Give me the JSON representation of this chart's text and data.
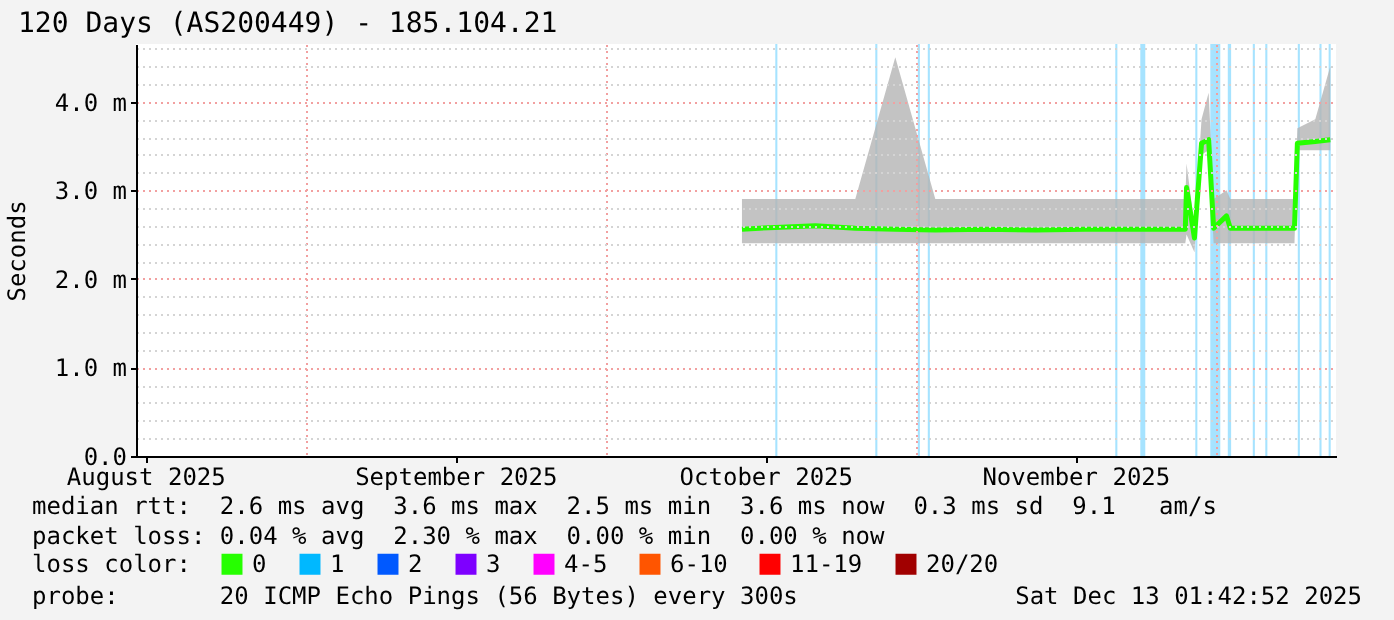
{
  "chart_data": {
    "type": "line",
    "title": "120 Days (AS200449) - 185.104.21",
    "ylabel": "Seconds",
    "legend_title": "loss color:",
    "annotations": [
      "median rtt:  2.6 ms avg  3.6 ms max  2.5 ms min  3.6 ms now  0.3 ms sd  9.1   am/s",
      "packet loss: 0.04 % avg  2.30 % max  0.00 % min  0.00 % now",
      "probe:       20 ICMP Echo Pings (56 Bytes) every 300s",
      "Sat Dec 13 01:42:52 2025"
    ],
    "xlim": [
      "2025-08-15T01:42",
      "2025-12-13T01:42"
    ],
    "xticks": [
      {
        "value": "2025-08-16T00:00",
        "label": "August 2025"
      },
      {
        "value": "2025-09-01T00:00",
        "label": null
      },
      {
        "value": "2025-09-16T00:00",
        "label": "September 2025"
      },
      {
        "value": "2025-10-01T00:00",
        "label": null
      },
      {
        "value": "2025-10-17T00:00",
        "label": "October 2025"
      },
      {
        "value": "2025-11-01T00:00",
        "label": null
      },
      {
        "value": "2025-11-17T00:00",
        "label": "November 2025"
      },
      {
        "value": "2025-12-01T00:00",
        "label": null
      }
    ],
    "ylim": [
      0,
      4.65
    ],
    "yticks": [
      {
        "value": 0,
        "label": "0.0"
      },
      {
        "value": 0.2,
        "label": null
      },
      {
        "value": 0.4,
        "label": null
      },
      {
        "value": 0.6,
        "label": null
      },
      {
        "value": 0.8,
        "label": null
      },
      {
        "value": 1,
        "label": "1.0 m"
      },
      {
        "value": 1.2,
        "label": null
      },
      {
        "value": 1.4,
        "label": null
      },
      {
        "value": 1.6,
        "label": null
      },
      {
        "value": 1.8,
        "label": null
      },
      {
        "value": 2,
        "label": "2.0 m"
      },
      {
        "value": 2.2,
        "label": null
      },
      {
        "value": 2.4,
        "label": null
      },
      {
        "value": 2.6,
        "label": null
      },
      {
        "value": 2.8,
        "label": null
      },
      {
        "value": 3,
        "label": "3.0 m"
      },
      {
        "value": 3.2,
        "label": null
      },
      {
        "value": 3.4,
        "label": null
      },
      {
        "value": 3.6,
        "label": null
      },
      {
        "value": 3.8,
        "label": null
      },
      {
        "value": 4,
        "label": "4.0 m"
      },
      {
        "value": 4.2,
        "label": null
      },
      {
        "value": 4.4,
        "label": null
      },
      {
        "value": 4.6,
        "label": null
      }
    ],
    "grid": true,
    "legend": "bottom",
    "bands": [
      {
        "axis": "x",
        "from": "2025-10-18T00:00",
        "to": "2025-10-18T05:00",
        "color": "#a6e3ff"
      },
      {
        "axis": "x",
        "from": "2025-10-28T00:00",
        "to": "2025-10-28T05:00",
        "color": "#a6e3ff"
      },
      {
        "axis": "x",
        "from": "2025-11-01T06:00",
        "to": "2025-11-01T11:00",
        "color": "#a6e3ff"
      },
      {
        "axis": "x",
        "from": "2025-11-02T06:00",
        "to": "2025-11-02T11:00",
        "color": "#a6e3ff"
      },
      {
        "axis": "x",
        "from": "2025-11-21T00:00",
        "to": "2025-11-21T05:00",
        "color": "#a6e3ff"
      },
      {
        "axis": "x",
        "from": "2025-11-23T12:00",
        "to": "2025-11-24T00:00",
        "color": "#a6e3ff"
      },
      {
        "axis": "x",
        "from": "2025-11-29T00:00",
        "to": "2025-11-29T05:00",
        "color": "#a6e3ff"
      },
      {
        "axis": "x",
        "from": "2025-11-30T12:00",
        "to": "2025-12-01T12:00",
        "color": "#a6e3ff"
      },
      {
        "axis": "x",
        "from": "2025-12-02T06:00",
        "to": "2025-12-02T14:00",
        "color": "#a6e3ff"
      },
      {
        "axis": "x",
        "from": "2025-12-04T18:00",
        "to": "2025-12-04T23:00",
        "color": "#a6e3ff"
      },
      {
        "axis": "x",
        "from": "2025-12-06T00:00",
        "to": "2025-12-06T05:00",
        "color": "#a6e3ff"
      },
      {
        "axis": "x",
        "from": "2025-12-09T06:00",
        "to": "2025-12-09T11:00",
        "color": "#a6e3ff"
      },
      {
        "axis": "x",
        "from": "2025-12-11T10:00",
        "to": "2025-12-11T15:00",
        "color": "#a6e3ff"
      },
      {
        "axis": "x",
        "from": "2025-12-12T08:00",
        "to": "2025-12-12T13:00",
        "color": "#a6e3ff"
      }
    ],
    "series": [
      {
        "name": "0",
        "color": "#26ff00",
        "x": [
          "2025-10-14T16:00",
          "2025-10-18T00:00",
          "2025-10-22T00:00",
          "2025-10-26T00:00",
          "2025-10-30T00:00",
          "2025-11-03T00:00",
          "2025-11-08T00:00",
          "2025-11-13T00:00",
          "2025-11-18T00:00",
          "2025-11-23T00:00",
          "2025-11-28T00:00",
          "2025-11-28T03:00",
          "2025-11-28T22:00",
          "2025-11-29T15:00",
          "2025-11-30T08:00",
          "2025-11-30T20:00",
          "2025-12-02T03:00",
          "2025-12-02T12:00",
          "2025-12-05T00:00",
          "2025-12-08T22:00",
          "2025-12-09T05:00",
          "2025-12-11T00:00",
          "2025-12-12T12:00"
        ],
        "values": [
          2.56,
          2.58,
          2.6,
          2.57,
          2.56,
          2.55,
          2.56,
          2.55,
          2.56,
          2.56,
          2.56,
          3.03,
          2.46,
          3.53,
          3.57,
          2.57,
          2.71,
          2.57,
          2.57,
          2.57,
          3.53,
          3.55,
          3.57
        ],
        "lower": [
          2.4,
          2.4,
          2.4,
          2.4,
          2.4,
          2.4,
          2.4,
          2.4,
          2.4,
          2.4,
          2.4,
          2.5,
          2.3,
          3.4,
          3.45,
          2.4,
          2.4,
          2.4,
          2.4,
          2.4,
          3.45,
          3.45,
          3.45
        ],
        "upper": [
          2.9,
          2.9,
          2.9,
          2.9,
          4.5,
          2.9,
          2.9,
          2.9,
          2.9,
          2.9,
          2.9,
          3.3,
          2.6,
          3.8,
          4.1,
          2.9,
          3.0,
          2.9,
          2.9,
          2.9,
          3.7,
          3.8,
          4.4
        ]
      },
      {
        "name": "1",
        "color": "#00b8ff"
      },
      {
        "name": "2",
        "color": "#0059ff"
      },
      {
        "name": "3",
        "color": "#7e00ff"
      },
      {
        "name": "4-5",
        "color": "#ff00ff"
      },
      {
        "name": "6-10",
        "color": "#ff5500"
      },
      {
        "name": "11-19",
        "color": "#ff0000"
      },
      {
        "name": "20/20",
        "color": "#a10000"
      }
    ]
  }
}
